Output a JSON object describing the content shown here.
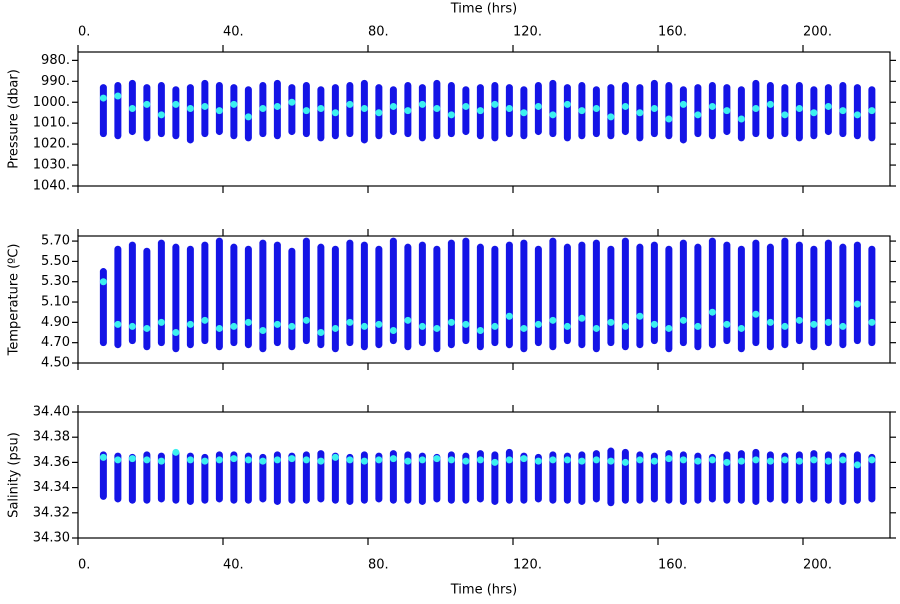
{
  "chart_data": {
    "type": "range",
    "xlabel": "Time (hrs)",
    "xlim": [
      0,
      224
    ],
    "xticks": [
      {
        "value": 0,
        "label": "0."
      },
      {
        "value": 40,
        "label": "40."
      },
      {
        "value": 80,
        "label": "80."
      },
      {
        "value": 120,
        "label": "120."
      },
      {
        "value": 160,
        "label": "160."
      },
      {
        "value": 200,
        "label": "200."
      }
    ],
    "x": [
      7,
      11,
      15,
      19,
      23,
      27,
      31,
      35,
      39,
      43,
      47,
      51,
      55,
      59,
      63,
      67,
      71,
      75,
      79,
      83,
      87,
      91,
      95,
      99,
      103,
      107,
      111,
      115,
      119,
      123,
      127,
      131,
      135,
      139,
      143,
      147,
      151,
      155,
      159,
      163,
      167,
      171,
      175,
      179,
      183,
      187,
      191,
      195,
      199,
      203,
      207,
      211,
      215,
      219
    ],
    "color": "#1414e6",
    "highlight_color": "#3cf0f0",
    "panels": [
      {
        "ylabel": "Pressure (dbar)",
        "ylim": [
          1040,
          976
        ],
        "yticks": [
          {
            "value": 980,
            "label": "980."
          },
          {
            "value": 990,
            "label": "990."
          },
          {
            "value": 1000,
            "label": "1000."
          },
          {
            "value": 1010,
            "label": "1010."
          },
          {
            "value": 1020,
            "label": "1020."
          },
          {
            "value": 1030,
            "label": "1030."
          },
          {
            "value": 1040,
            "label": "1040."
          }
        ],
        "low": [
          993,
          992,
          991,
          993,
          992,
          994,
          993,
          991,
          992,
          993,
          994,
          992,
          991,
          993,
          992,
          994,
          993,
          992,
          991,
          993,
          994,
          992,
          993,
          991,
          992,
          994,
          993,
          992,
          993,
          994,
          992,
          991,
          993,
          992,
          994,
          993,
          992,
          993,
          991,
          992,
          994,
          993,
          992,
          993,
          994,
          991,
          992,
          993,
          992,
          994,
          993,
          992,
          993,
          994
        ],
        "high": [
          1015,
          1016,
          1014,
          1017,
          1015,
          1016,
          1018,
          1015,
          1014,
          1016,
          1017,
          1015,
          1016,
          1014,
          1015,
          1017,
          1016,
          1015,
          1018,
          1016,
          1014,
          1015,
          1017,
          1016,
          1015,
          1014,
          1016,
          1017,
          1015,
          1016,
          1014,
          1015,
          1017,
          1016,
          1015,
          1016,
          1014,
          1017,
          1015,
          1016,
          1018,
          1015,
          1016,
          1014,
          1017,
          1015,
          1016,
          1015,
          1017,
          1016,
          1014,
          1015,
          1016,
          1017
        ],
        "highlight": [
          998,
          997,
          1003,
          1001,
          1006,
          1001,
          1003,
          1002,
          1004,
          1001,
          1007,
          1003,
          1002,
          1000,
          1004,
          1003,
          1005,
          1001,
          1003,
          1005,
          1002,
          1004,
          1001,
          1003,
          1006,
          1002,
          1004,
          1001,
          1003,
          1005,
          1002,
          1006,
          1001,
          1004,
          1003,
          1007,
          1002,
          1005,
          1003,
          1008,
          1001,
          1006,
          1002,
          1004,
          1008,
          1003,
          1001,
          1006,
          1003,
          1005,
          1002,
          1004,
          1006,
          1004
        ]
      },
      {
        "ylabel": "Temperature (ºC)",
        "ylim": [
          4.5,
          5.75
        ],
        "yticks": [
          {
            "value": 4.5,
            "label": "4.50"
          },
          {
            "value": 4.7,
            "label": "4.70"
          },
          {
            "value": 4.9,
            "label": "4.90"
          },
          {
            "value": 5.1,
            "label": "5.10"
          },
          {
            "value": 5.3,
            "label": "5.30"
          },
          {
            "value": 5.5,
            "label": "5.50"
          },
          {
            "value": 5.7,
            "label": "5.70"
          }
        ],
        "low": [
          4.7,
          4.68,
          4.72,
          4.66,
          4.7,
          4.64,
          4.68,
          4.72,
          4.66,
          4.7,
          4.68,
          4.64,
          4.7,
          4.66,
          4.72,
          4.68,
          4.64,
          4.7,
          4.66,
          4.68,
          4.72,
          4.66,
          4.7,
          4.64,
          4.68,
          4.72,
          4.66,
          4.7,
          4.68,
          4.64,
          4.7,
          4.66,
          4.72,
          4.68,
          4.64,
          4.7,
          4.66,
          4.68,
          4.72,
          4.64,
          4.7,
          4.66,
          4.68,
          4.72,
          4.64,
          4.7,
          4.66,
          4.68,
          4.72,
          4.66,
          4.7,
          4.68,
          4.72,
          4.7
        ],
        "high": [
          5.4,
          5.62,
          5.66,
          5.6,
          5.68,
          5.64,
          5.62,
          5.66,
          5.7,
          5.64,
          5.62,
          5.68,
          5.66,
          5.6,
          5.7,
          5.64,
          5.62,
          5.68,
          5.66,
          5.62,
          5.7,
          5.64,
          5.66,
          5.62,
          5.68,
          5.7,
          5.64,
          5.62,
          5.66,
          5.68,
          5.62,
          5.7,
          5.64,
          5.66,
          5.68,
          5.62,
          5.7,
          5.64,
          5.66,
          5.62,
          5.68,
          5.64,
          5.7,
          5.66,
          5.62,
          5.68,
          5.64,
          5.7,
          5.66,
          5.62,
          5.68,
          5.64,
          5.66,
          5.62
        ],
        "highlight": [
          5.3,
          4.88,
          4.86,
          4.84,
          4.9,
          4.8,
          4.88,
          4.92,
          4.84,
          4.86,
          4.9,
          4.82,
          4.88,
          4.86,
          4.92,
          4.8,
          4.84,
          4.9,
          4.86,
          4.88,
          4.82,
          4.92,
          4.86,
          4.84,
          4.9,
          4.88,
          4.82,
          4.86,
          4.96,
          4.84,
          4.88,
          4.92,
          4.86,
          4.94,
          4.84,
          4.9,
          4.86,
          4.96,
          4.88,
          4.84,
          4.92,
          4.86,
          5.0,
          4.88,
          4.84,
          4.98,
          4.9,
          4.86,
          4.92,
          4.88,
          4.9,
          4.86,
          5.08,
          4.9
        ]
      },
      {
        "ylabel": "Salinity (psu)",
        "ylim": [
          34.3,
          34.4
        ],
        "yticks": [
          {
            "value": 34.3,
            "label": "34.30"
          },
          34.32,
          34.34,
          34.36,
          34.38,
          {
            "value": 34.4,
            "label": "34.40"
          }
        ],
        "low": [
          34.333,
          34.331,
          34.33,
          34.33,
          34.331,
          34.33,
          34.329,
          34.33,
          34.331,
          34.33,
          34.33,
          34.331,
          34.329,
          34.33,
          34.33,
          34.331,
          34.33,
          34.329,
          34.33,
          34.331,
          34.33,
          34.33,
          34.329,
          34.331,
          34.33,
          34.33,
          34.331,
          34.329,
          34.33,
          34.33,
          34.331,
          34.33,
          34.33,
          34.329,
          34.331,
          34.328,
          34.33,
          34.33,
          34.331,
          34.33,
          34.329,
          34.33,
          34.331,
          34.33,
          34.33,
          34.329,
          34.331,
          34.33,
          34.33,
          34.331,
          34.33,
          34.329,
          34.33,
          34.331
        ],
        "high": [
          34.366,
          34.365,
          34.364,
          34.366,
          34.365,
          34.367,
          34.365,
          34.364,
          34.366,
          34.366,
          34.365,
          34.364,
          34.366,
          34.365,
          34.366,
          34.367,
          34.365,
          34.364,
          34.366,
          34.365,
          34.367,
          34.366,
          34.365,
          34.364,
          34.366,
          34.365,
          34.367,
          34.366,
          34.368,
          34.365,
          34.364,
          34.366,
          34.365,
          34.366,
          34.367,
          34.369,
          34.368,
          34.366,
          34.365,
          34.367,
          34.366,
          34.365,
          34.364,
          34.366,
          34.367,
          34.368,
          34.366,
          34.365,
          34.366,
          34.367,
          34.366,
          34.365,
          34.366,
          34.364
        ],
        "highlight": [
          34.364,
          34.362,
          34.363,
          34.362,
          34.361,
          34.368,
          34.362,
          34.361,
          34.362,
          34.363,
          34.362,
          34.361,
          34.362,
          34.363,
          34.362,
          34.361,
          34.364,
          34.362,
          34.361,
          34.362,
          34.363,
          34.361,
          34.362,
          34.363,
          34.362,
          34.361,
          34.362,
          34.36,
          34.362,
          34.363,
          34.361,
          34.362,
          34.362,
          34.361,
          34.362,
          34.361,
          34.36,
          34.362,
          34.361,
          34.363,
          34.362,
          34.361,
          34.362,
          34.36,
          34.361,
          34.362,
          34.361,
          34.362,
          34.361,
          34.362,
          34.361,
          34.362,
          34.358,
          34.362
        ]
      }
    ]
  }
}
